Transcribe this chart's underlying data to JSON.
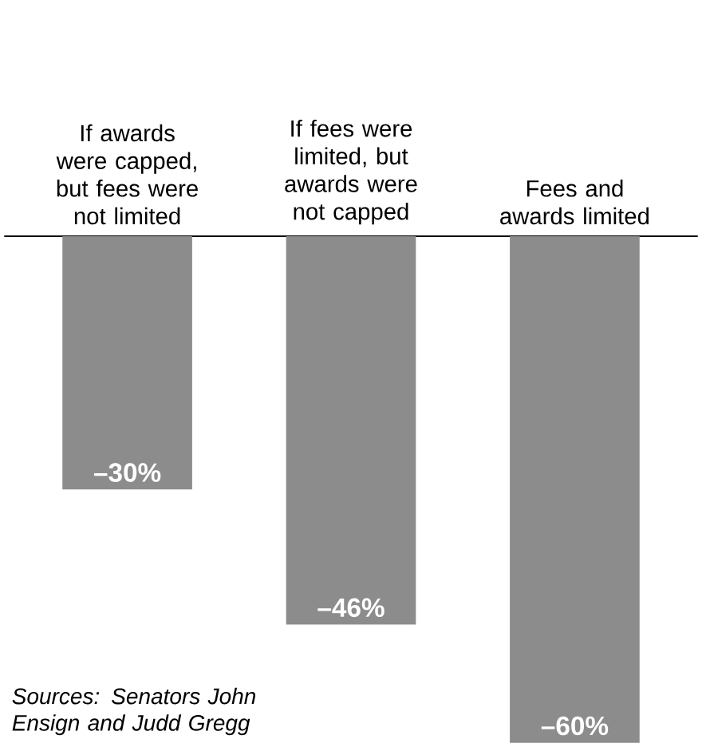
{
  "chart_data": {
    "type": "bar",
    "categories": [
      "If awards were capped, but fees were not limited",
      "If fees were limited, but awards were not capped",
      "Fees and awards limited"
    ],
    "values": [
      -30,
      -46,
      -60
    ],
    "color": "#8c8c8c",
    "value_labels": [
      "–30%",
      "–46%",
      "–60%"
    ],
    "annotations": [
      "Sources: Senators John Ensign and Judd Gregg"
    ],
    "grid": false
  }
}
